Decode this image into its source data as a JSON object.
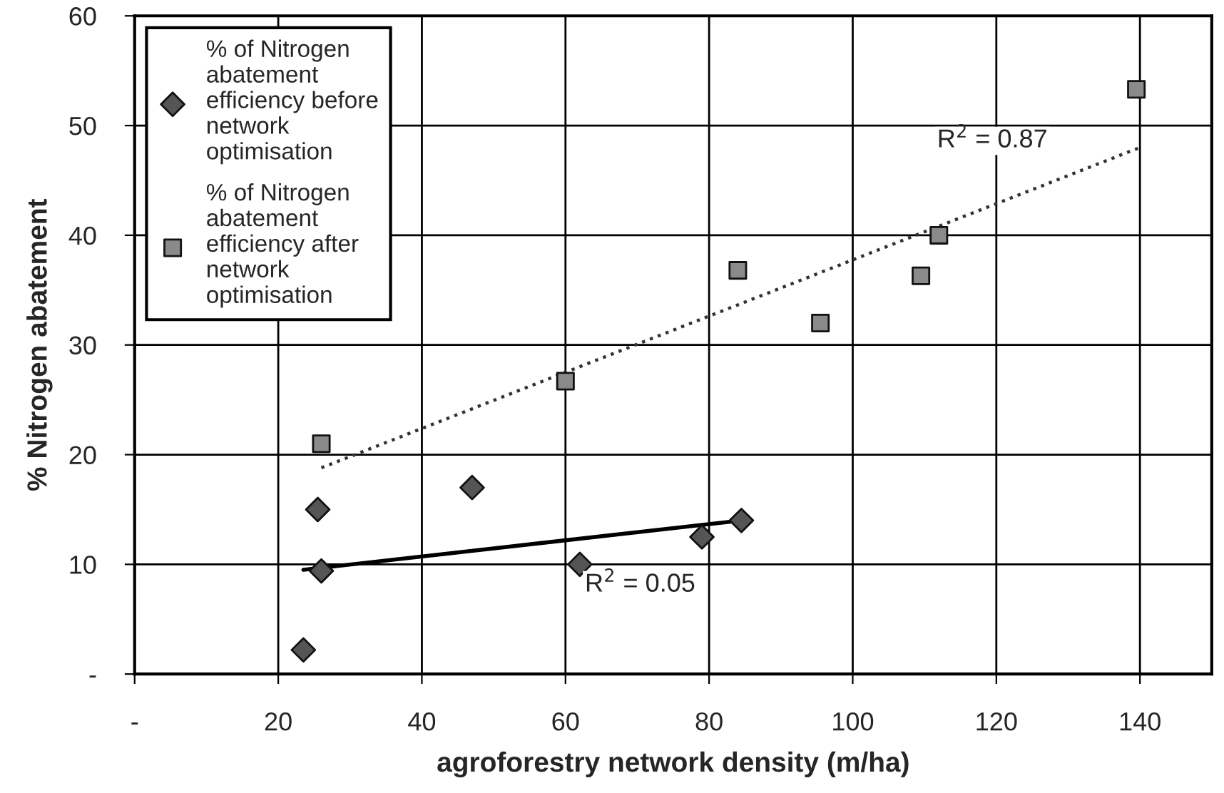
{
  "chart_data": {
    "type": "scatter",
    "xlabel": "agroforestry network density (m/ha)",
    "ylabel": "% Nitrogen abatement",
    "xlim": [
      0,
      150
    ],
    "ylim": [
      0,
      60
    ],
    "xticks": [
      {
        "value": 0,
        "label": "-"
      },
      20,
      40,
      60,
      80,
      100,
      120,
      140
    ],
    "yticks": [
      {
        "value": 0,
        "label": "-"
      },
      10,
      20,
      30,
      40,
      50,
      60
    ],
    "grid": true,
    "legend": "top left",
    "series": [
      {
        "name": "% of Nitrogen abatement efficiency before network optimisation",
        "color": "#555555",
        "marker": "diamond",
        "x": [
          23.5,
          25.5,
          26,
          47,
          62,
          79,
          84.5
        ],
        "values": [
          2.2,
          15,
          9.4,
          17,
          10,
          12.5,
          14
        ]
      },
      {
        "name": "% of Nitrogen abatement efficiency after network optimisation",
        "color": "#8a8a8a",
        "marker": "square",
        "x": [
          26,
          60,
          84,
          95.5,
          109.5,
          112,
          139.5
        ],
        "values": [
          21,
          26.7,
          36.8,
          32,
          36.3,
          40,
          53.3
        ]
      },
      {
        "type": "line",
        "color": "#000000",
        "line_style": "solid",
        "x": [
          23.5,
          84.5
        ],
        "values": [
          9.5,
          14
        ]
      },
      {
        "type": "line",
        "color": "#333333",
        "line_style": "dotted",
        "x": [
          26,
          140
        ],
        "values": [
          18.8,
          48
        ]
      }
    ],
    "annotations": [
      "R$^{2}$ = 0.87",
      "R$^{2}$ = 0.05"
    ]
  }
}
